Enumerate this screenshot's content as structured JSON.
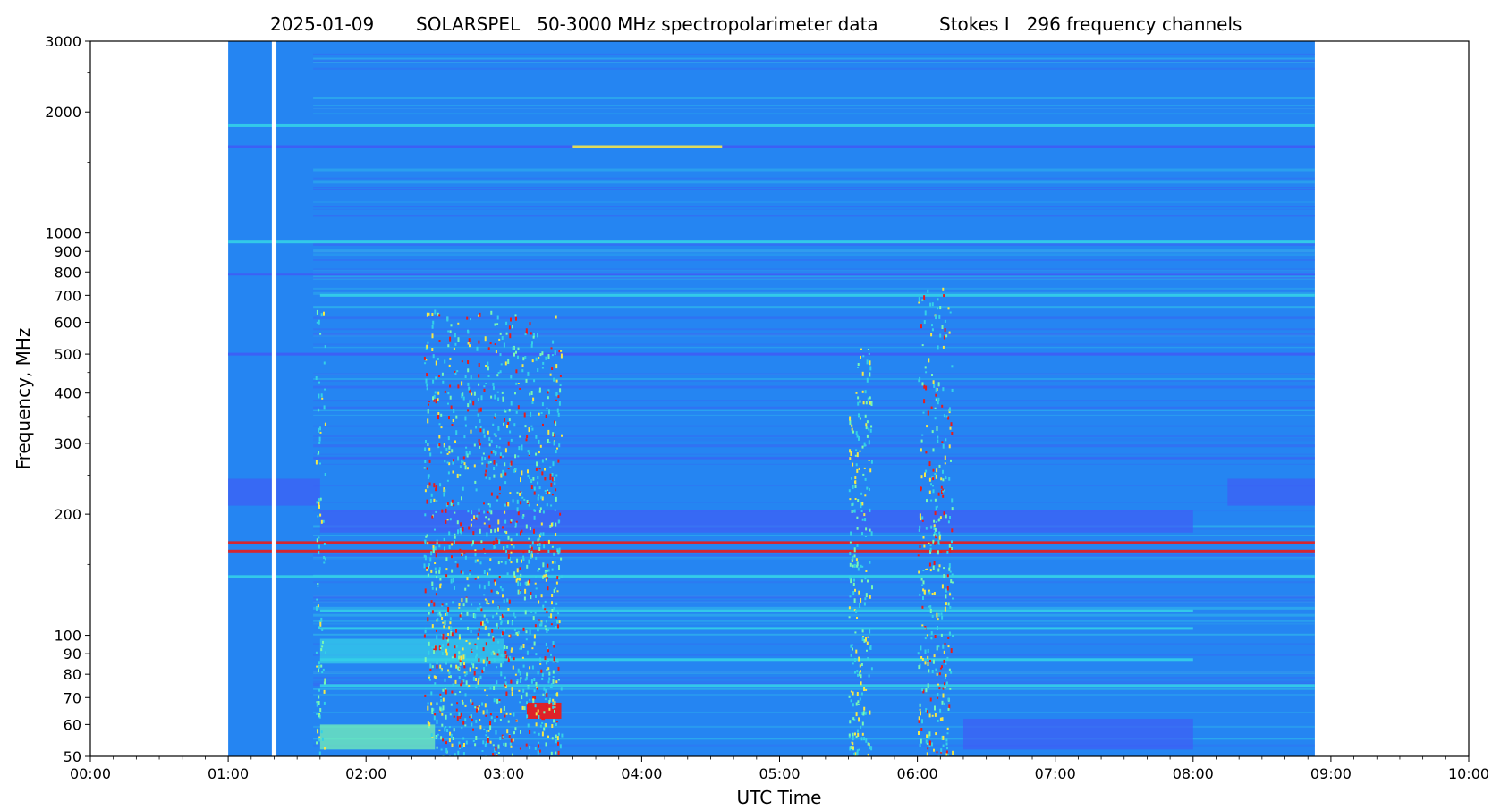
{
  "chart_data": {
    "type": "heatmap",
    "title": {
      "date": "2025-01-09",
      "instrument": "SOLARSPEL   50-3000 MHz spectropolarimeter data",
      "parameter": "Stokes I   296 frequency channels"
    },
    "xlabel": "UTC Time",
    "ylabel": "Frequency, MHz",
    "x_scale": "time",
    "y_scale": "log",
    "xlim": [
      "00:00",
      "10:00"
    ],
    "ylim": [
      50,
      3000
    ],
    "x_ticks": [
      "00:00",
      "01:00",
      "02:00",
      "03:00",
      "04:00",
      "05:00",
      "06:00",
      "07:00",
      "08:00",
      "09:00",
      "10:00"
    ],
    "y_ticks": [
      50,
      60,
      70,
      80,
      90,
      100,
      200,
      300,
      400,
      500,
      600,
      700,
      800,
      900,
      1000,
      2000,
      3000
    ],
    "y_ticks_labels": [
      "50",
      "60",
      "70",
      "80",
      "90",
      "100",
      "200",
      "300",
      "400",
      "500",
      "600",
      "700",
      "800",
      "900",
      "1000",
      "2000",
      "3000"
    ],
    "y_minor_ticks": [
      150,
      250,
      350,
      450,
      1500,
      2500
    ],
    "grid": false,
    "data_coverage": [
      "01:00",
      "08:53"
    ],
    "data_gaps": [
      [
        "01:19",
        "01:21"
      ]
    ],
    "colormap": {
      "background": "#2585f2",
      "low": "#3f5cf5",
      "mid": "#34d0e8",
      "high_mid": "#79f7b3",
      "warm": "#f3e84a",
      "hot": "#e81c1c"
    },
    "rfi_lines": [
      {
        "freq": 1850,
        "start": "01:00",
        "end": "08:53",
        "level": "mid"
      },
      {
        "freq": 1640,
        "start": "01:00",
        "end": "08:53",
        "level": "low"
      },
      {
        "freq": 1640,
        "start": "03:30",
        "end": "04:35",
        "level": "warm"
      },
      {
        "freq": 950,
        "start": "01:00",
        "end": "08:53",
        "level": "mid"
      },
      {
        "freq": 790,
        "start": "01:00",
        "end": "08:53",
        "level": "low"
      },
      {
        "freq": 700,
        "start": "01:40",
        "end": "08:53",
        "level": "mid"
      },
      {
        "freq": 500,
        "start": "01:00",
        "end": "08:53",
        "level": "low"
      },
      {
        "freq": 170,
        "start": "01:00",
        "end": "08:53",
        "level": "hot"
      },
      {
        "freq": 162,
        "start": "01:00",
        "end": "08:53",
        "level": "hot"
      },
      {
        "freq": 140,
        "start": "01:00",
        "end": "08:53",
        "level": "mid"
      },
      {
        "freq": 115,
        "start": "01:40",
        "end": "08:00",
        "level": "mid"
      },
      {
        "freq": 104,
        "start": "01:40",
        "end": "08:00",
        "level": "mid"
      },
      {
        "freq": 87,
        "start": "01:40",
        "end": "08:00",
        "level": "mid"
      },
      {
        "freq": 75,
        "start": "01:40",
        "end": "08:53",
        "level": "mid"
      }
    ],
    "bands": [
      {
        "fmin": 210,
        "fmax": 245,
        "start": "01:00",
        "end": "01:40",
        "level": "low"
      },
      {
        "fmin": 210,
        "fmax": 245,
        "start": "08:15",
        "end": "08:53",
        "level": "low"
      },
      {
        "fmin": 180,
        "fmax": 205,
        "start": "01:40",
        "end": "08:00",
        "level": "low"
      },
      {
        "fmin": 52,
        "fmax": 60,
        "start": "01:40",
        "end": "02:30",
        "level": "high_mid"
      },
      {
        "fmin": 52,
        "fmax": 62,
        "start": "06:20",
        "end": "08:00",
        "level": "low"
      },
      {
        "fmin": 62,
        "fmax": 68,
        "start": "03:10",
        "end": "03:25",
        "level": "hot"
      },
      {
        "fmin": 85,
        "fmax": 98,
        "start": "01:40",
        "end": "03:00",
        "level": "mid"
      }
    ],
    "bursts": [
      {
        "start": "02:25",
        "end": "03:25",
        "fmin": 50,
        "fmax": 650,
        "level": "hot"
      },
      {
        "start": "05:30",
        "end": "05:40",
        "fmin": 50,
        "fmax": 550,
        "level": "warm"
      },
      {
        "start": "06:00",
        "end": "06:15",
        "fmin": 50,
        "fmax": 750,
        "level": "hot"
      },
      {
        "start": "01:38",
        "end": "01:42",
        "fmin": 50,
        "fmax": 700,
        "level": "mid"
      }
    ]
  }
}
